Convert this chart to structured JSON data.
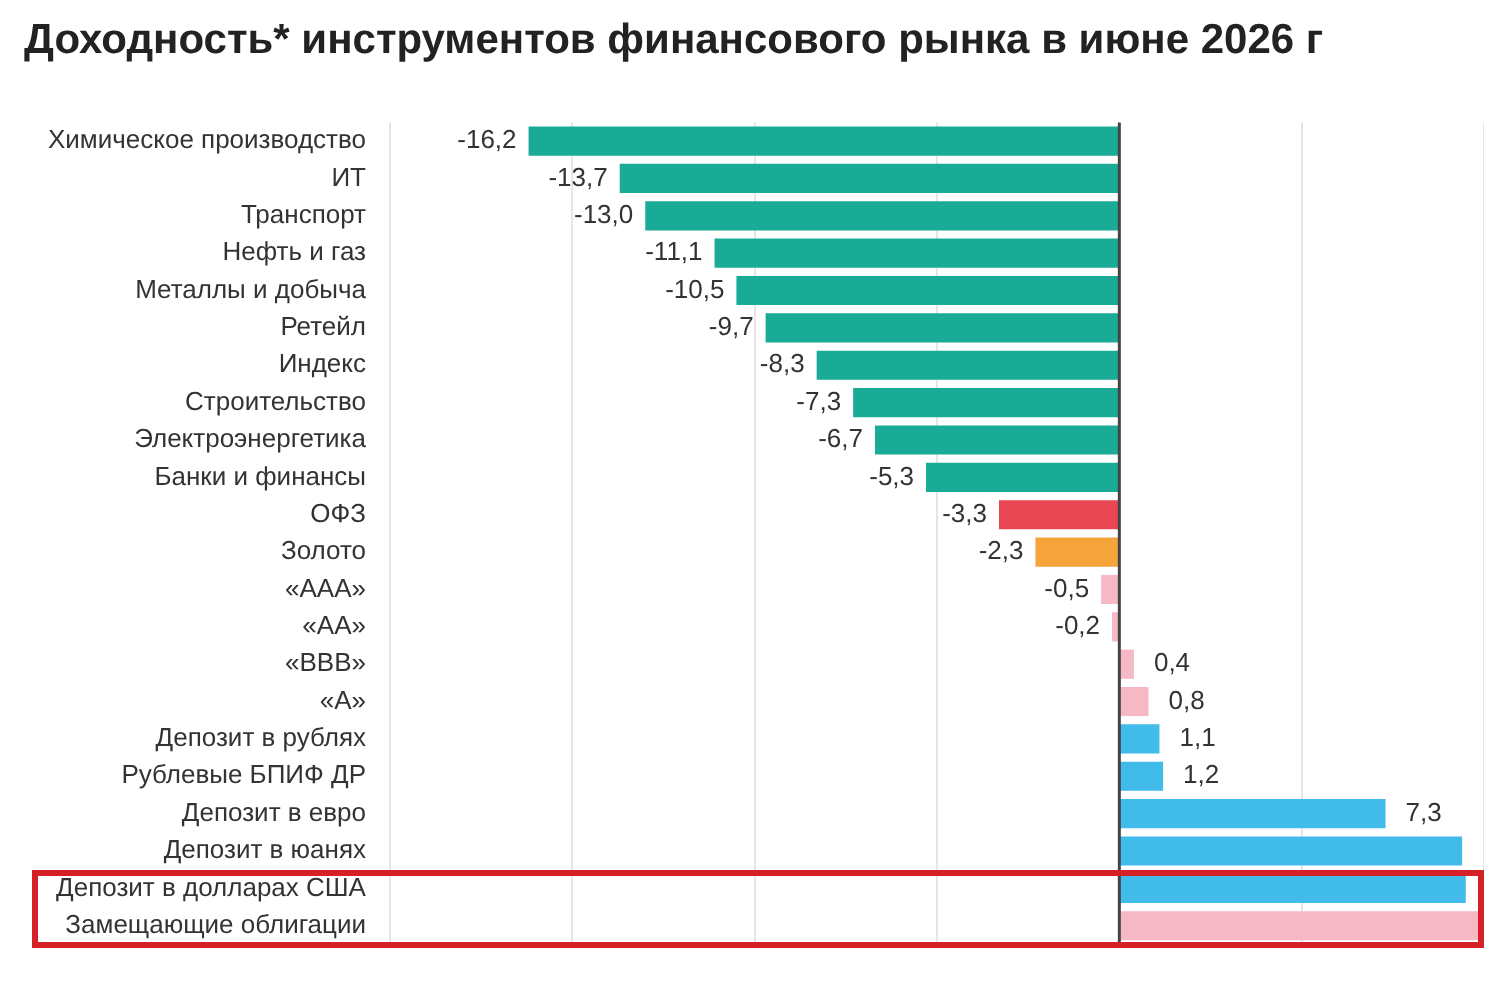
{
  "chart_data": {
    "type": "bar",
    "orientation": "horizontal",
    "title": "Доходность* инструментов финансового рынка в июне 2026 г",
    "categories": [
      "Химическое производство",
      "ИТ",
      "Транспорт",
      "Нефть и газ",
      "Металлы и добыча",
      "Ретейл",
      "Индекс",
      "Строительство",
      "Электроэнергетика",
      "Банки и финансы",
      "ОФЗ",
      "Золото",
      "«ААА»",
      "«АА»",
      "«ВВВ»",
      "«А»",
      "Депозит в рублях",
      "Рублевые БПИФ ДР",
      "Депозит в евро",
      "Депозит в юанях",
      "Депозит в долларах США",
      "Замещающие облигации"
    ],
    "values": [
      -16.2,
      -13.7,
      -13.0,
      -11.1,
      -10.5,
      -9.7,
      -8.3,
      -7.3,
      -6.7,
      -5.3,
      -3.3,
      -2.3,
      -0.5,
      -0.2,
      0.4,
      0.8,
      1.1,
      1.2,
      7.3,
      9.4,
      9.5,
      10.0
    ],
    "value_labels": [
      "-16,2",
      "-13,7",
      "-13,0",
      "-11,1",
      "-10,5",
      "-9,7",
      "-8,3",
      "-7,3",
      "-6,7",
      "-5,3",
      "-3,3",
      "-2,3",
      "-0,5",
      "-0,2",
      "0,4",
      "0,8",
      "1,1",
      "1,2",
      "7,3",
      null,
      null,
      null
    ],
    "colors": [
      "#1aab97",
      "#1aab97",
      "#1aab97",
      "#1aab97",
      "#1aab97",
      "#1aab97",
      "#1aab97",
      "#1aab97",
      "#1aab97",
      "#1aab97",
      "#e84652",
      "#f5a33b",
      "#f5b8c4",
      "#f5b8c4",
      "#f5b8c4",
      "#f5b8c4",
      "#41bbea",
      "#41bbea",
      "#41bbea",
      "#41bbea",
      "#41bbea",
      "#f5b8c4"
    ],
    "xlim": [
      -20,
      10
    ],
    "xticks": [
      {
        "value": -20,
        "label": null
      },
      {
        "value": -15,
        "label": null
      },
      {
        "value": -10,
        "label": null
      },
      {
        "value": -5,
        "label": null
      },
      {
        "value": 0,
        "label": null
      },
      {
        "value": 5,
        "label": null
      },
      {
        "value": 10,
        "label": null
      }
    ],
    "grid": "x",
    "tick_labels": "y",
    "legend": false
  }
}
